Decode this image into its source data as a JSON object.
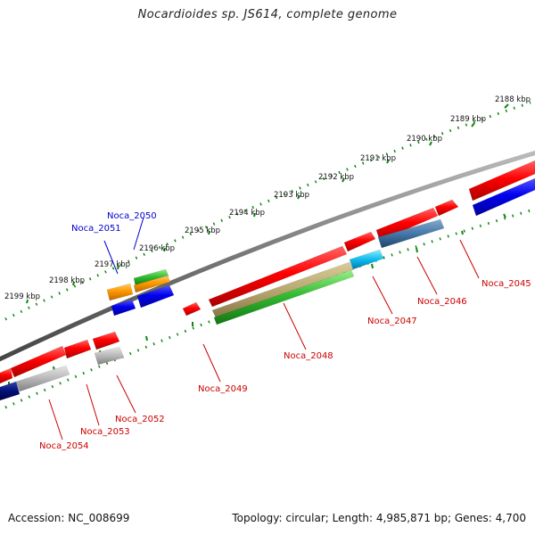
{
  "title": "Nocardioides sp. JS614, complete genome",
  "footer": {
    "accession": "Accession: NC_008699",
    "summary": "Topology: circular; Length: 4,985,871 bp; Genes: 4,700"
  },
  "colors": {
    "red": "#ee0000",
    "blue": "#0000ee",
    "green": "#33bb33",
    "orange": "#ff9900",
    "gray": "#999999",
    "tick_green": "#118811",
    "label_red": "#cc0000",
    "label_blue": "#0000cc"
  },
  "scale": {
    "unit": "kbp",
    "ticks": [
      {
        "label": "2188 kbp"
      },
      {
        "label": "2189 kbp"
      },
      {
        "label": "2190 kbp"
      },
      {
        "label": "2191 kbp"
      },
      {
        "label": "2192 kbp"
      },
      {
        "label": "2193 kbp"
      },
      {
        "label": "2194 kbp"
      },
      {
        "label": "2195 kbp"
      },
      {
        "label": "2196 kbp"
      },
      {
        "label": "2197 kbp"
      },
      {
        "label": "2198 kbp"
      },
      {
        "label": "2199 kbp"
      }
    ]
  },
  "genes": [
    {
      "label": "Noca_2045",
      "color": "label_red"
    },
    {
      "label": "Noca_2046",
      "color": "label_red"
    },
    {
      "label": "Noca_2047",
      "color": "label_red"
    },
    {
      "label": "Noca_2048",
      "color": "label_red"
    },
    {
      "label": "Noca_2049",
      "color": "label_red"
    },
    {
      "label": "Noca_2050",
      "color": "label_blue"
    },
    {
      "label": "Noca_2051",
      "color": "label_blue"
    },
    {
      "label": "Noca_2052",
      "color": "label_red"
    },
    {
      "label": "Noca_2053",
      "color": "label_red"
    },
    {
      "label": "Noca_2054",
      "color": "label_red"
    }
  ]
}
